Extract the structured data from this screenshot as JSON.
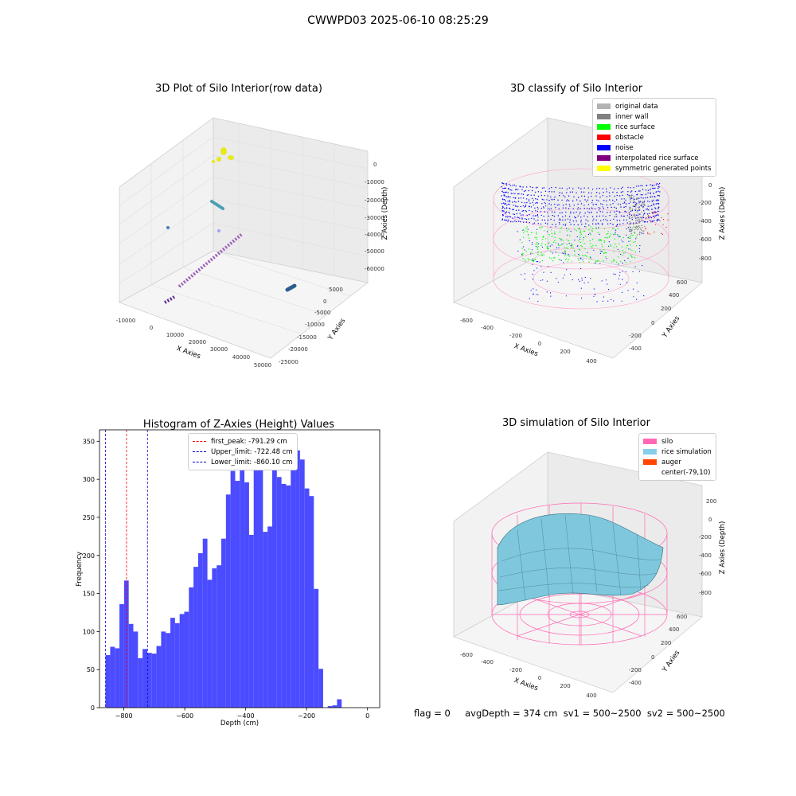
{
  "suptitle": "CWWPD03 2025-06-10 08:25:29",
  "footer": "flag = 0     avgDepth = 374 cm  sv1 = 500~2500  sv2 = 500~2500",
  "panels": {
    "raw": {
      "title": "3D Plot of Silo Interior(row data)",
      "xlabel": "X Axies",
      "ylabel": "Y Axies",
      "zlabel": "Z Axies (Depth)",
      "xticks": [
        "-10000",
        "0",
        "10000",
        "20000",
        "30000",
        "40000",
        "50000"
      ],
      "yticks": [
        "5000",
        "0",
        "-5000",
        "-10000",
        "-15000",
        "-20000",
        "-25000"
      ],
      "zticks": [
        "0",
        "-10000",
        "-20000",
        "-30000",
        "-40000",
        "-50000",
        "-60000"
      ]
    },
    "classify": {
      "title": "3D classify of Silo Interior",
      "xlabel": "X Axies",
      "ylabel": "Y Axies",
      "zlabel": "Z Axies (Depth)",
      "xticks": [
        "-600",
        "-400",
        "-200",
        "0",
        "200",
        "400"
      ],
      "yticks": [
        "600",
        "400",
        "200",
        "0",
        "-200",
        "-400"
      ],
      "zticks": [
        "200",
        "0",
        "-200",
        "-400",
        "-600",
        "-800"
      ],
      "legend": [
        {
          "label": "original data",
          "color": "#b3b3b3"
        },
        {
          "label": "inner wall",
          "color": "#808080"
        },
        {
          "label": "rice surface",
          "color": "#00ff00"
        },
        {
          "label": "obstacle",
          "color": "#ff0000"
        },
        {
          "label": "noise",
          "color": "#0000ff"
        },
        {
          "label": "interpolated rice surface",
          "color": "#800080"
        },
        {
          "label": "symmetric generated points",
          "color": "#ffff00"
        }
      ]
    },
    "sim": {
      "title": "3D simulation of Silo Interior",
      "xlabel": "X Axies",
      "ylabel": "Y Axies",
      "zlabel": "Z Axies (Depth)",
      "xticks": [
        "-600",
        "-400",
        "-200",
        "0",
        "200",
        "400"
      ],
      "yticks": [
        "600",
        "400",
        "200",
        "0",
        "-200",
        "-400"
      ],
      "zticks": [
        "200",
        "0",
        "-200",
        "-400",
        "-600",
        "-800"
      ],
      "legend": [
        {
          "label": "silo",
          "color": "#ff69b4"
        },
        {
          "label": "rice simulation",
          "color": "#87ceeb"
        },
        {
          "label": "auger",
          "color": "#ff4500"
        },
        {
          "label": "center(-79,10)",
          "color": ""
        }
      ]
    }
  },
  "chart_data": {
    "type": "bar",
    "title": "Histogram of Z-Axies (Height) Values",
    "xlabel": "Depth (cm)",
    "ylabel": "Frequency",
    "xlim": [
      -880,
      40
    ],
    "ylim": [
      0,
      365
    ],
    "xticks": [
      -800,
      -600,
      -400,
      -200,
      0
    ],
    "yticks": [
      0,
      50,
      100,
      150,
      200,
      250,
      300,
      350
    ],
    "bar_color": "#4b4bff",
    "bin_width": 15.2,
    "bin_start": -860.1,
    "values": [
      69,
      80,
      78,
      136,
      167,
      110,
      100,
      65,
      77,
      72,
      71,
      81,
      100,
      98,
      118,
      111,
      123,
      126,
      158,
      185,
      203,
      222,
      168,
      183,
      187,
      222,
      280,
      311,
      298,
      316,
      296,
      227,
      317,
      348,
      231,
      238,
      330,
      303,
      294,
      292,
      325,
      338,
      326,
      288,
      278,
      156,
      51,
      0,
      2,
      3,
      11
    ],
    "vlines": [
      {
        "label": "first_peak: -791.29 cm",
        "x": -791.29,
        "color": "#ff0000"
      },
      {
        "label": "Upper_limit: -722.48 cm",
        "x": -722.48,
        "color": "#0000cc"
      },
      {
        "label": "Lower_limit: -860.10 cm",
        "x": -860.1,
        "color": "#0000cc"
      }
    ]
  }
}
